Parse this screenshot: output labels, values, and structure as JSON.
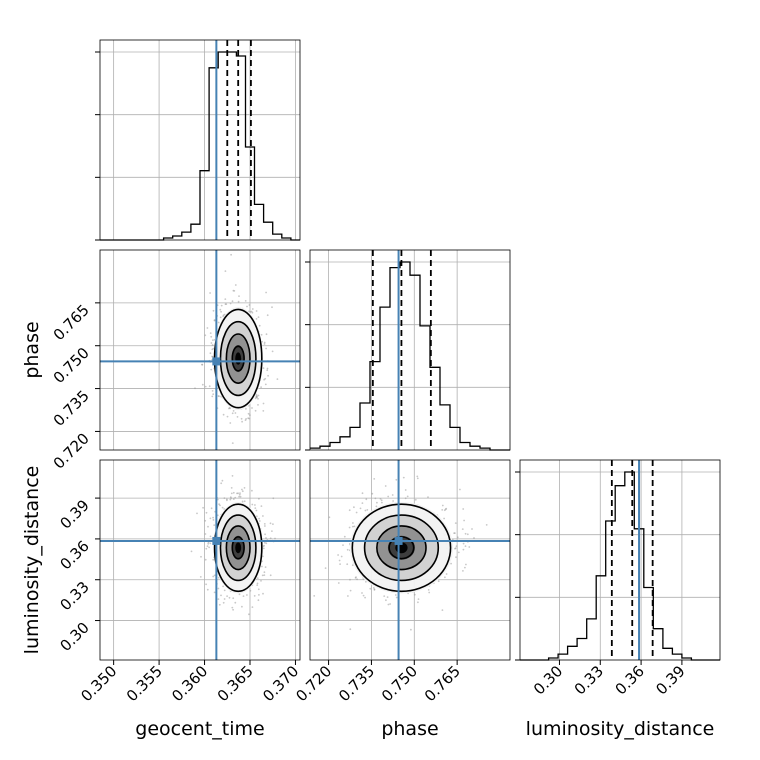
{
  "chart_data": {
    "type": "corner",
    "colors": {
      "truth": "#4682b4",
      "hist": "#000000",
      "grid": "#b0b0b0",
      "scatter": "#9a9a9a"
    },
    "parameters": [
      {
        "name": "geocent_time",
        "label": "geocent_time",
        "range": [
          0.3485,
          0.3705
        ],
        "ticks": [
          "0.350",
          "0.355",
          "0.360",
          "0.365",
          "0.370"
        ],
        "truth": 0.3613
      },
      {
        "name": "phase",
        "label": "phase",
        "range": [
          0.7135,
          0.7835
        ],
        "ticks": [
          "0.720",
          "0.735",
          "0.750",
          "0.765"
        ],
        "truth": 0.7445
      },
      {
        "name": "luminosity_distance",
        "label": "luminosity_distance",
        "range": [
          0.271,
          0.418
        ],
        "ticks": [
          "0.30",
          "0.33",
          "0.36",
          "0.39"
        ],
        "truth": 0.3585
      }
    ],
    "marginals": [
      {
        "param": "geocent_time",
        "bin_start": 0.3485,
        "bin_width": 0.001,
        "counts": [
          0,
          0,
          0,
          0,
          0,
          0,
          0,
          1,
          2,
          4,
          8,
          35,
          87,
          95,
          95,
          93,
          47,
          18,
          9,
          3,
          1,
          0
        ],
        "quantiles": [
          0.3625,
          0.3637,
          0.3651
        ]
      },
      {
        "param": "phase",
        "bin_start": 0.7135,
        "bin_width": 0.0035,
        "counts": [
          1,
          2,
          4,
          7,
          12,
          25,
          47,
          76,
          97,
          100,
          93,
          66,
          44,
          24,
          12,
          4,
          2,
          1,
          0,
          0
        ],
        "quantiles": [
          0.7355,
          0.7455,
          0.7558
        ]
      },
      {
        "param": "luminosity_distance",
        "bin_start": 0.271,
        "bin_width": 0.007,
        "counts": [
          0,
          0,
          0,
          1,
          3,
          7,
          11,
          21,
          43,
          71,
          89,
          96,
          67,
          37,
          16,
          6,
          3,
          1,
          0,
          0,
          0
        ],
        "quantiles": [
          0.3385,
          0.3535,
          0.3685
        ]
      }
    ],
    "joint_2d": [
      {
        "x": "geocent_time",
        "y": "phase",
        "center": [
          0.3637,
          0.7455
        ],
        "sigma": [
          0.0013,
          0.0086
        ],
        "rho": 0.05
      },
      {
        "x": "geocent_time",
        "y": "luminosity_distance",
        "center": [
          0.3637,
          0.3535
        ],
        "sigma": [
          0.0013,
          0.016
        ],
        "rho": 0.0
      },
      {
        "x": "phase",
        "y": "luminosity_distance",
        "center": [
          0.7455,
          0.3535
        ],
        "sigma": [
          0.0086,
          0.016
        ],
        "rho": 0.0
      }
    ],
    "contour_levels_sigma": [
      0.5,
      1.0,
      1.5,
      2.0
    ],
    "grid": true
  }
}
